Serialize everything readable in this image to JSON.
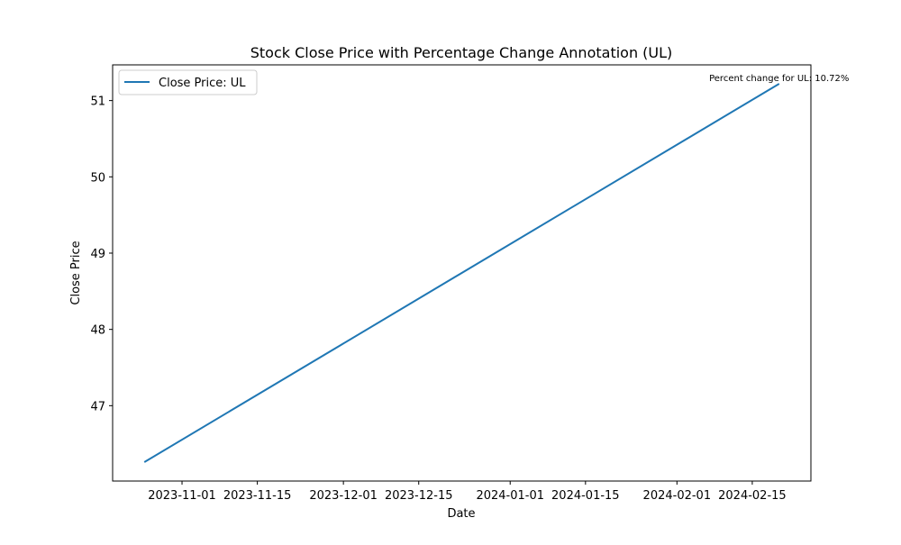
{
  "chart_data": {
    "type": "line",
    "title": "Stock Close Price with Percentage Change Annotation (UL)",
    "xlabel": "Date",
    "ylabel": "Close Price",
    "x_tick_labels": [
      "2023-11-01",
      "2023-11-15",
      "2023-12-01",
      "2023-12-15",
      "2024-01-01",
      "2024-01-15",
      "2024-02-01",
      "2024-02-15"
    ],
    "y_tick_labels": [
      "47",
      "48",
      "49",
      "50",
      "51"
    ],
    "series": [
      {
        "name": "Close Price: UL",
        "color": "#1f77b4",
        "x": [
          "2023-10-25",
          "2024-02-20"
        ],
        "values": [
          46.26,
          51.22
        ]
      }
    ],
    "legend": {
      "position": "top-left",
      "entries": [
        "Close Price: UL"
      ]
    },
    "annotation": {
      "text": "Percent change for UL: 10.72%",
      "x": "2024-02-20",
      "y": 51.22
    },
    "grid": false
  }
}
